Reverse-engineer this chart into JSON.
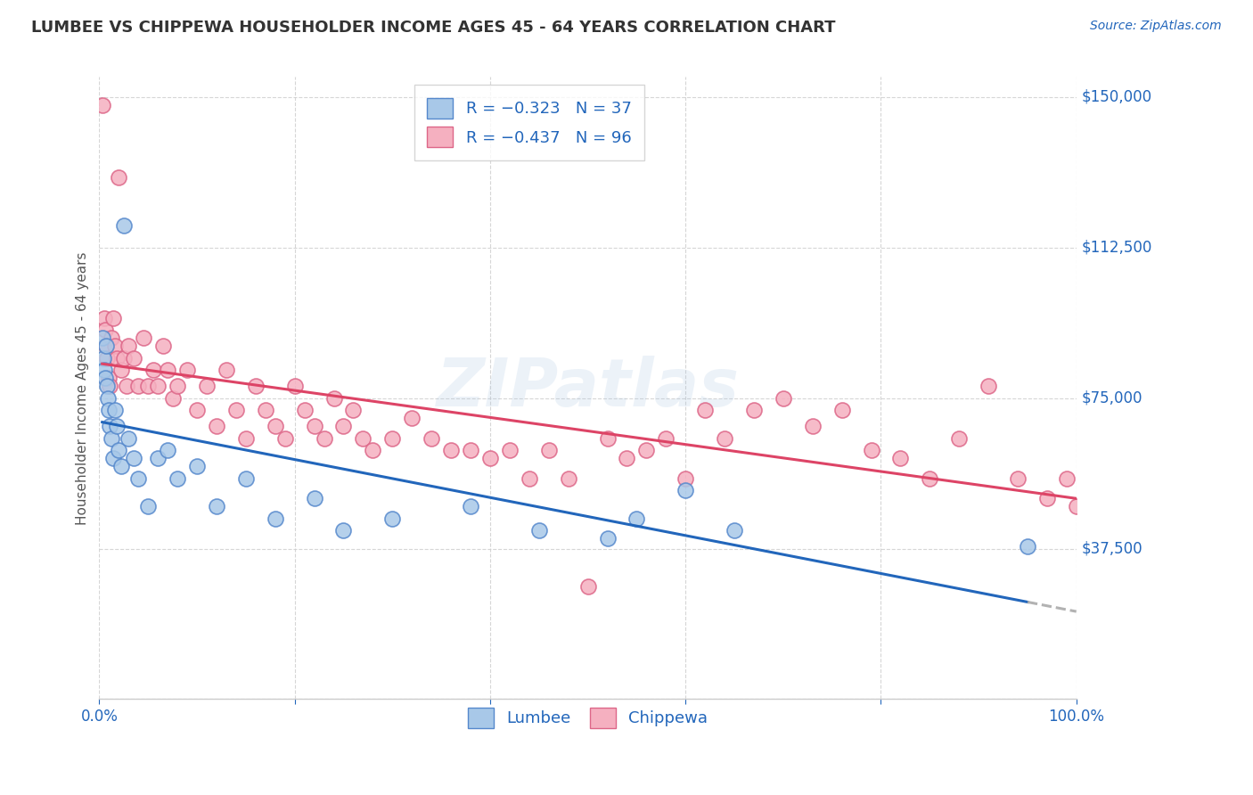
{
  "title": "LUMBEE VS CHIPPEWA HOUSEHOLDER INCOME AGES 45 - 64 YEARS CORRELATION CHART",
  "source": "Source: ZipAtlas.com",
  "ylabel": "Householder Income Ages 45 - 64 years",
  "xlim": [
    0.0,
    100.0
  ],
  "ylim": [
    0,
    155000
  ],
  "yticks": [
    0,
    37500,
    75000,
    112500,
    150000
  ],
  "ytick_labels": [
    "",
    "$37,500",
    "$75,000",
    "$112,500",
    "$150,000"
  ],
  "lumbee_color": "#a8c8e8",
  "chippewa_color": "#f5b0c0",
  "lumbee_edge": "#5588cc",
  "chippewa_edge": "#dd6688",
  "line_lumbee": "#2266bb",
  "line_chippewa": "#dd4466",
  "dashed_color": "#aaaaaa",
  "watermark": "ZIPatlas",
  "background_color": "#ffffff",
  "grid_color": "#cccccc",
  "legend_text_color": "#2266bb",
  "axis_label_color": "#2266bb",
  "title_color": "#333333",
  "lumbee_x": [
    0.3,
    0.4,
    0.5,
    0.6,
    0.7,
    0.8,
    0.9,
    1.0,
    1.1,
    1.2,
    1.4,
    1.6,
    1.8,
    2.0,
    2.2,
    2.5,
    3.0,
    3.5,
    4.0,
    5.0,
    6.0,
    7.0,
    8.0,
    10.0,
    12.0,
    15.0,
    18.0,
    22.0,
    25.0,
    30.0,
    38.0,
    45.0,
    52.0,
    55.0,
    60.0,
    65.0,
    95.0
  ],
  "lumbee_y": [
    90000,
    85000,
    82000,
    80000,
    88000,
    78000,
    75000,
    72000,
    68000,
    65000,
    60000,
    72000,
    68000,
    62000,
    58000,
    118000,
    65000,
    60000,
    55000,
    48000,
    60000,
    62000,
    55000,
    58000,
    48000,
    55000,
    45000,
    50000,
    42000,
    45000,
    48000,
    42000,
    40000,
    45000,
    52000,
    42000,
    38000
  ],
  "chippewa_x": [
    0.3,
    0.5,
    0.6,
    0.7,
    0.8,
    1.0,
    1.1,
    1.2,
    1.4,
    1.6,
    1.8,
    2.0,
    2.2,
    2.5,
    2.8,
    3.0,
    3.5,
    4.0,
    4.5,
    5.0,
    5.5,
    6.0,
    6.5,
    7.0,
    7.5,
    8.0,
    9.0,
    10.0,
    11.0,
    12.0,
    13.0,
    14.0,
    15.0,
    16.0,
    17.0,
    18.0,
    19.0,
    20.0,
    21.0,
    22.0,
    23.0,
    24.0,
    25.0,
    26.0,
    27.0,
    28.0,
    30.0,
    32.0,
    34.0,
    36.0,
    38.0,
    40.0,
    42.0,
    44.0,
    46.0,
    48.0,
    50.0,
    52.0,
    54.0,
    56.0,
    58.0,
    60.0,
    62.0,
    64.0,
    67.0,
    70.0,
    73.0,
    76.0,
    79.0,
    82.0,
    85.0,
    88.0,
    91.0,
    94.0,
    97.0,
    99.0,
    100.0
  ],
  "chippewa_y": [
    148000,
    95000,
    92000,
    88000,
    85000,
    80000,
    78000,
    90000,
    95000,
    88000,
    85000,
    130000,
    82000,
    85000,
    78000,
    88000,
    85000,
    78000,
    90000,
    78000,
    82000,
    78000,
    88000,
    82000,
    75000,
    78000,
    82000,
    72000,
    78000,
    68000,
    82000,
    72000,
    65000,
    78000,
    72000,
    68000,
    65000,
    78000,
    72000,
    68000,
    65000,
    75000,
    68000,
    72000,
    65000,
    62000,
    65000,
    70000,
    65000,
    62000,
    62000,
    60000,
    62000,
    55000,
    62000,
    55000,
    28000,
    65000,
    60000,
    62000,
    65000,
    55000,
    72000,
    65000,
    72000,
    75000,
    68000,
    72000,
    62000,
    60000,
    55000,
    65000,
    78000,
    55000,
    50000,
    55000,
    48000
  ]
}
